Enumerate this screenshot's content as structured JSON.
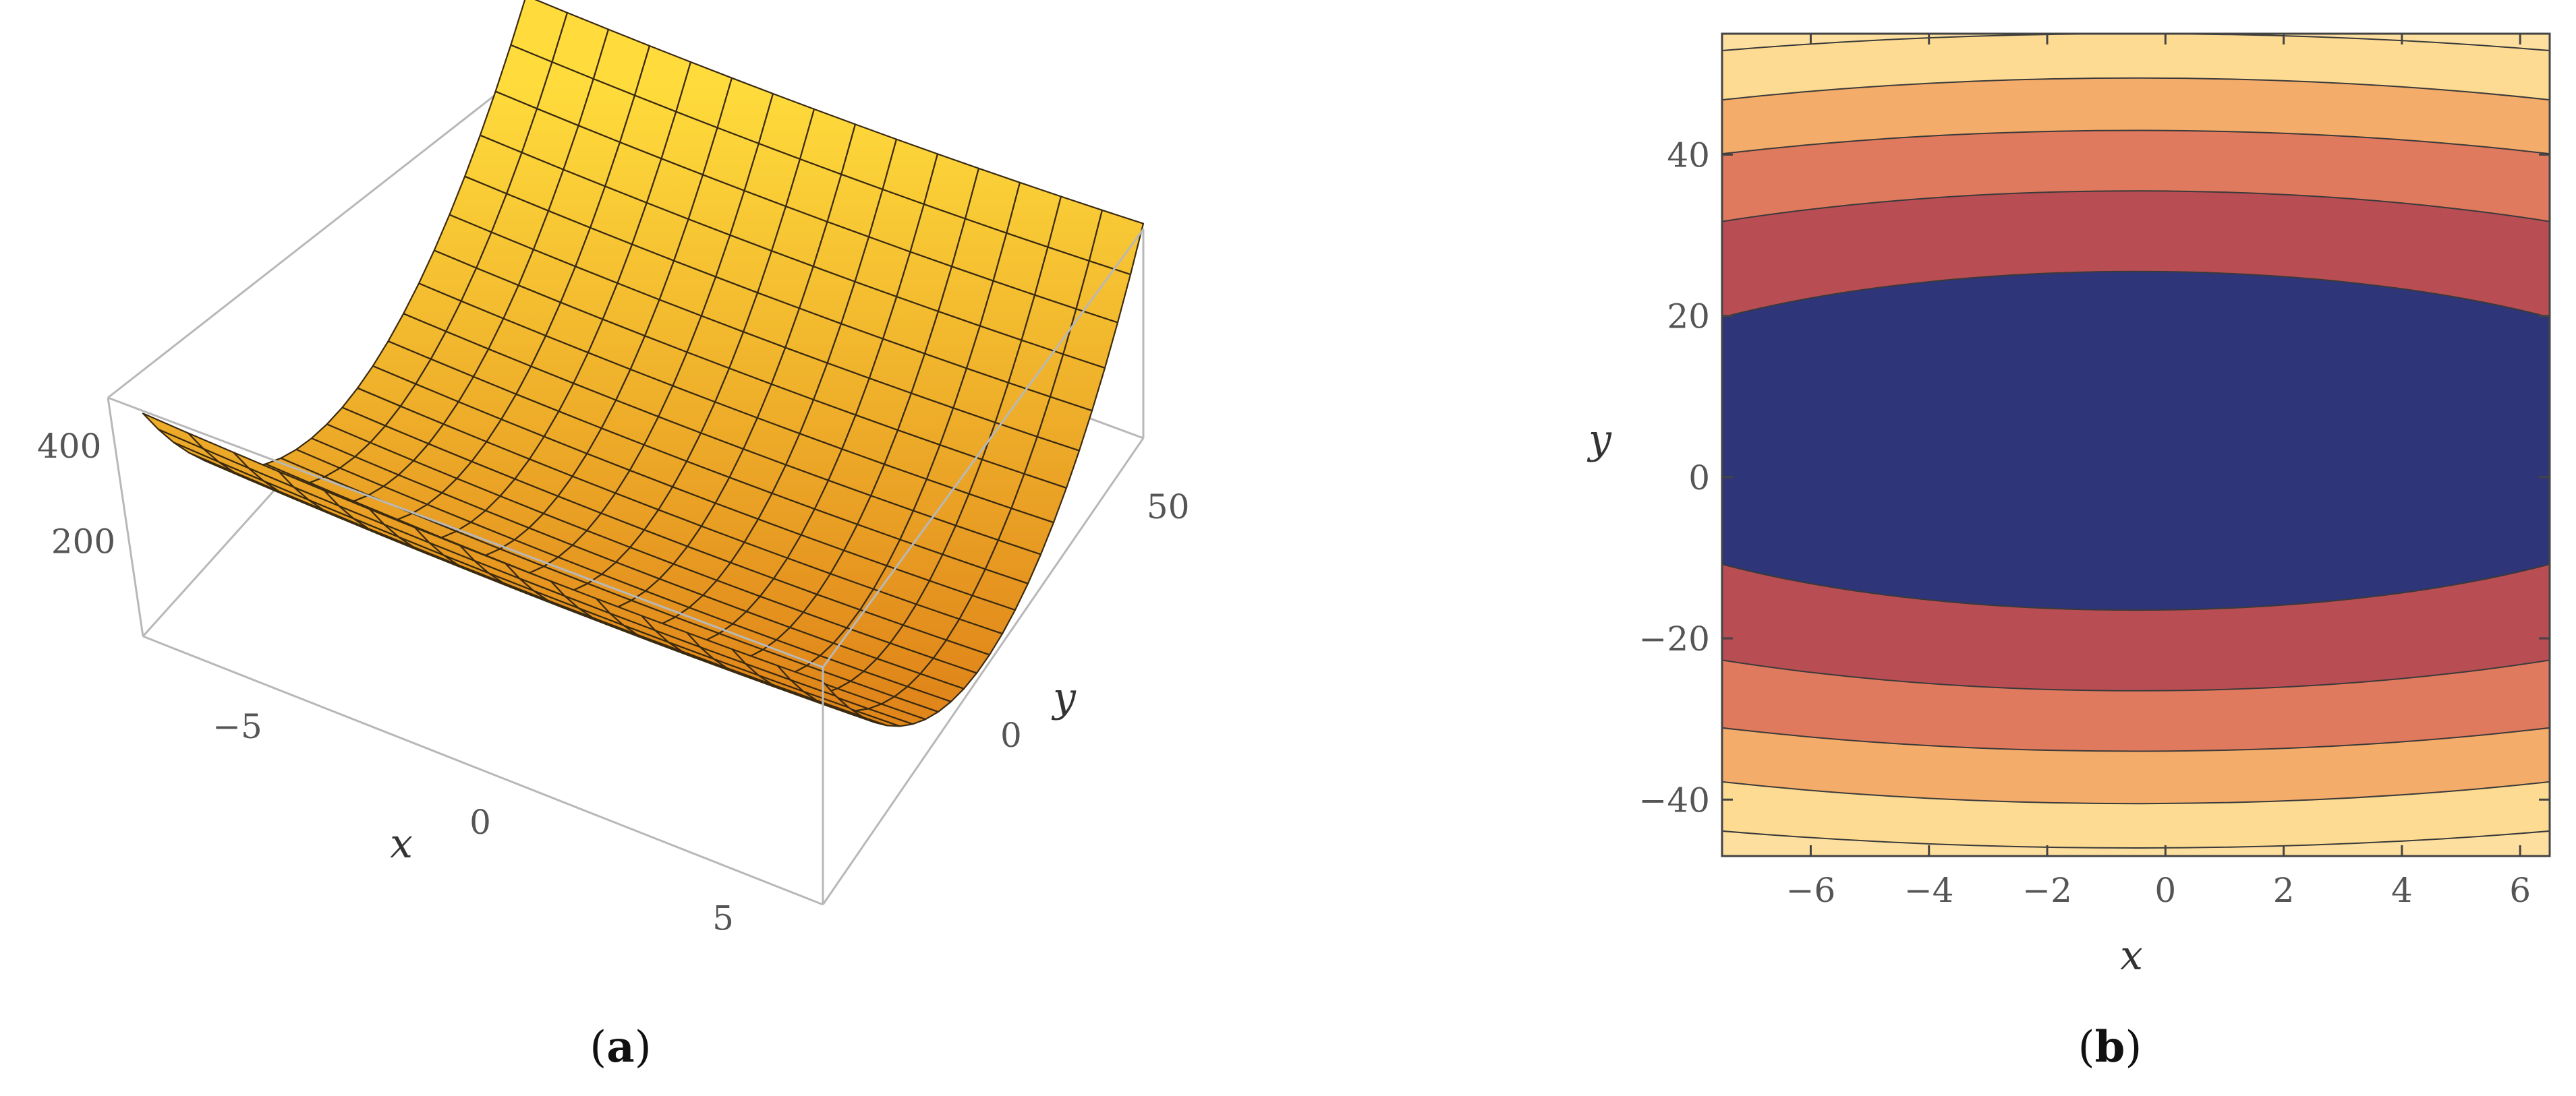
{
  "captions": {
    "a_open": "(",
    "a_letter": "a",
    "a_close": ")",
    "b_open": "(",
    "b_letter": "b",
    "b_close": ")"
  },
  "chart_data": [
    {
      "type": "surface",
      "panel": "a",
      "xlabel": "x",
      "ylabel": "y",
      "zlabel": "",
      "xlim": [
        -7.5,
        6.5
      ],
      "ylim": [
        -47,
        55
      ],
      "zlim": [
        0,
        500
      ],
      "x_ticks": [
        {
          "value": -5,
          "label": "−5"
        },
        {
          "value": 0,
          "label": "0"
        },
        {
          "value": 5,
          "label": "5"
        }
      ],
      "y_ticks": [
        {
          "value": 0,
          "label": "0"
        },
        {
          "value": 50,
          "label": "50"
        }
      ],
      "z_ticks": [
        {
          "value": 200,
          "label": "200"
        },
        {
          "value": 400,
          "label": "400"
        }
      ],
      "mesh": {
        "x_lines": 15,
        "y_lines": 25
      },
      "colors": {
        "surface_top": "#ffdc3c",
        "surface_bottom": "#e0861a",
        "mesh": "#3a2a10",
        "box": "#b8b8b8"
      }
    },
    {
      "type": "contour",
      "panel": "b",
      "xlabel": "x",
      "ylabel": "y",
      "xlim": [
        -7.5,
        6.5
      ],
      "ylim": [
        -47,
        55
      ],
      "center": {
        "x": -0.5,
        "y": 4.5
      },
      "x_ticks": [
        {
          "value": -6,
          "label": "−6"
        },
        {
          "value": -4,
          "label": "−4"
        },
        {
          "value": -2,
          "label": "−2"
        },
        {
          "value": 0,
          "label": "0"
        },
        {
          "value": 2,
          "label": "2"
        },
        {
          "value": 4,
          "label": "4"
        },
        {
          "value": 6,
          "label": "6"
        }
      ],
      "y_ticks": [
        {
          "value": -40,
          "label": "−40"
        },
        {
          "value": -20,
          "label": "−20"
        },
        {
          "value": 0,
          "label": "0"
        },
        {
          "value": 20,
          "label": "20"
        },
        {
          "value": 40,
          "label": "40"
        }
      ],
      "bands": [
        {
          "y_center": 21.0,
          "y_edge": 15.3,
          "color": "#2e3579"
        },
        {
          "y_center": 31.0,
          "y_edge": 27.2,
          "color": "#b84e54"
        },
        {
          "y_center": 38.5,
          "y_edge": 35.6,
          "color": "#e07a5e"
        },
        {
          "y_center": 45.0,
          "y_edge": 42.3,
          "color": "#f4ac6a"
        },
        {
          "y_center": 50.5,
          "y_edge": 48.4,
          "color": "#fddb93"
        }
      ],
      "outer_color": "#fde0a0"
    }
  ]
}
